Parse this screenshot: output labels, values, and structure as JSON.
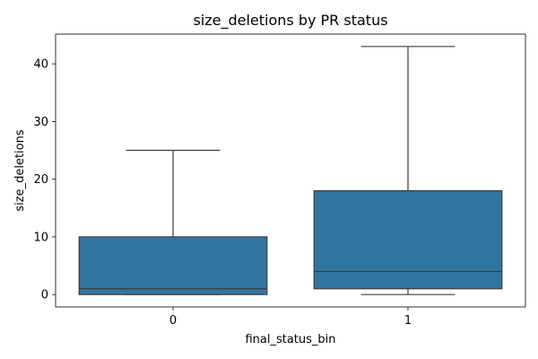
{
  "chart_data": {
    "type": "boxplot",
    "title": "size_deletions by PR status",
    "xlabel": "final_status_bin",
    "ylabel": "size_deletions",
    "categories": [
      "0",
      "1"
    ],
    "boxes": [
      {
        "category": "0",
        "whisker_low": 0,
        "q1": 0,
        "median": 1,
        "q3": 10,
        "whisker_high": 25
      },
      {
        "category": "1",
        "whisker_low": 0,
        "q1": 1,
        "median": 4,
        "q3": 18,
        "whisker_high": 43
      }
    ],
    "yticks": [
      0,
      10,
      20,
      30,
      40
    ],
    "ylim": [
      -2.15,
      45.15
    ],
    "grid": false,
    "legend": "none",
    "box_color": "#3274a1",
    "line_color": "#3d3d3d"
  }
}
